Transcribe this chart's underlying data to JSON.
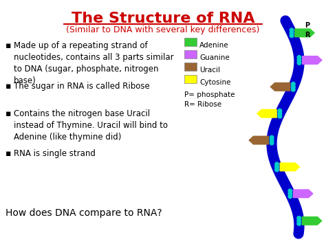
{
  "title": "The Structure of RNA",
  "subtitle": "(Similar to DNA with several key differences)",
  "title_color": "#cc0000",
  "subtitle_color": "#cc0000",
  "background_color": "#ffffff",
  "bullet_points": [
    "Made up of a repeating strand of\nnucleotides, contains all 3 parts similar\nto DNA (sugar, phosphate, nitrogen\nbase)",
    "The sugar in RNA is called Ribose",
    "Contains the nitrogen base Uracil\ninstead of Thymine. Uracil will bind to\nAdenine (like thymine did)",
    "RNA is single strand"
  ],
  "legend_items": [
    {
      "label": "Adenine",
      "color": "#33cc33"
    },
    {
      "label": "Guanine",
      "color": "#cc66ff"
    },
    {
      "label": "Uracil",
      "color": "#996633"
    },
    {
      "label": "Cytosine",
      "color": "#ffff00"
    }
  ],
  "legend_notes": [
    "P= phosphate",
    "R= Ribose"
  ],
  "bottom_text": "How does DNA compare to RNA?",
  "bottom_text_color": "#000000",
  "text_color": "#000000",
  "bullet_color": "#000000",
  "dna_colors": {
    "backbone": "#0000cc",
    "adenine": "#33cc33",
    "guanine": "#cc66ff",
    "uracil": "#996633",
    "cytosine": "#ffff00",
    "connector": "#00cccc"
  }
}
